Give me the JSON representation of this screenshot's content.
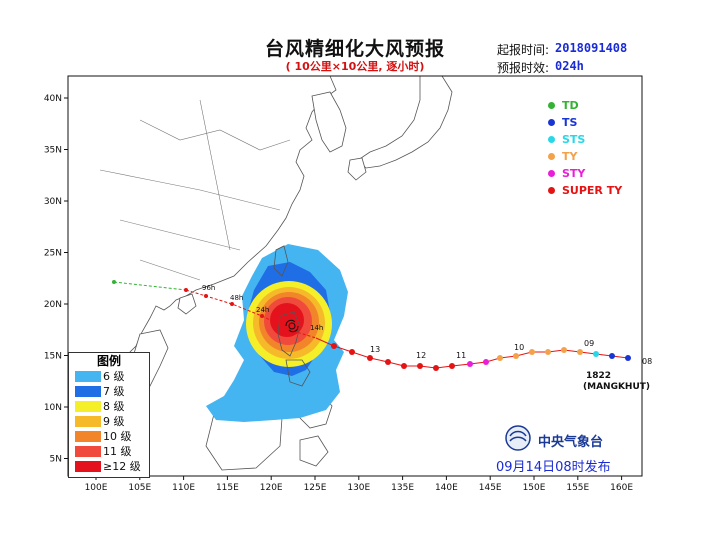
{
  "header": {
    "title": "台风精细化大风预报",
    "subtitle": "( 10公里×10公里, 逐小时)",
    "start_time_label": "起报时间:",
    "start_time_value": "2018091408",
    "lead_time_label": "预报时效:",
    "lead_time_value": "024h"
  },
  "map": {
    "lat_ticks": [
      "40N",
      "35N",
      "30N",
      "25N",
      "20N",
      "15N",
      "10N",
      "5N"
    ],
    "lon_ticks": [
      "100E",
      "105E",
      "110E",
      "115E",
      "120E",
      "125E",
      "130E",
      "135E",
      "140E",
      "145E",
      "150E",
      "155E",
      "160E"
    ]
  },
  "wind_legend": {
    "title": "图例",
    "unit": "级",
    "items": [
      {
        "grade": "6",
        "color": "#45b5f2"
      },
      {
        "grade": "7",
        "color": "#1f6ee6"
      },
      {
        "grade": "8",
        "color": "#f5ef2a"
      },
      {
        "grade": "9",
        "color": "#f5b92a"
      },
      {
        "grade": "10",
        "color": "#f2842a"
      },
      {
        "grade": "11",
        "color": "#f04a3c"
      },
      {
        "grade": "≥12",
        "color": "#e4121c"
      }
    ]
  },
  "category_legend": [
    {
      "label": "TD",
      "color": "#33b233"
    },
    {
      "label": "TS",
      "color": "#1a35d6"
    },
    {
      "label": "STS",
      "color": "#28d8e8"
    },
    {
      "label": "TY",
      "color": "#f3a24a"
    },
    {
      "label": "STY",
      "color": "#e81ed8"
    },
    {
      "label": "SUPER TY",
      "color": "#e41414"
    }
  ],
  "typhoon": {
    "id": "1822",
    "name": "(MANGKHUT)",
    "date_labels": [
      "08",
      "09",
      "10",
      "11",
      "12",
      "13",
      "14h",
      "24h",
      "48h",
      "96h"
    ]
  },
  "footer": {
    "agency": "中央气象台",
    "issue_time": "09月14日08时发布"
  }
}
